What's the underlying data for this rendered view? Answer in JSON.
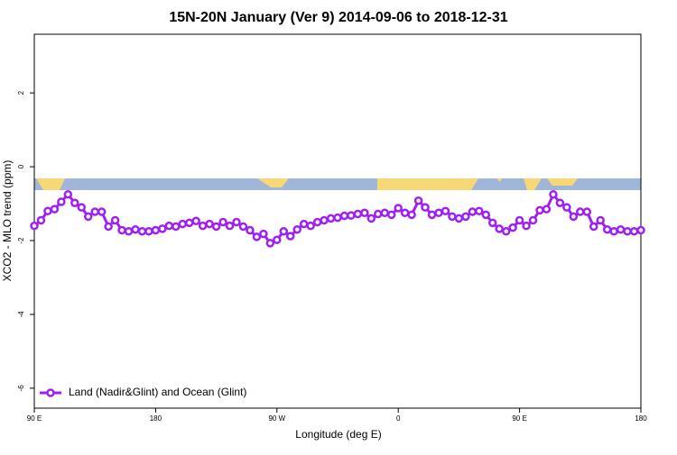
{
  "chart_data": {
    "type": "line",
    "title": "15N-20N January (Ver 9)   2014-09-06 to 2018-12-31",
    "x_label": "Longitude (deg E)",
    "y_label": "XCO2 - MLO trend (ppm)",
    "x": [
      90,
      95,
      100,
      105,
      110,
      115,
      120,
      125,
      130,
      135,
      140,
      145,
      150,
      155,
      160,
      165,
      170,
      175,
      180,
      185,
      190,
      195,
      200,
      205,
      210,
      215,
      220,
      225,
      230,
      235,
      240,
      245,
      250,
      255,
      260,
      265,
      270,
      275,
      280,
      285,
      290,
      295,
      300,
      305,
      310,
      315,
      320,
      325,
      330,
      335,
      340,
      345,
      350,
      355,
      360,
      365,
      370,
      375,
      380,
      385,
      390,
      395,
      400,
      405,
      410,
      415,
      420,
      425,
      430,
      435,
      440,
      445,
      450,
      455,
      460,
      465,
      470,
      475,
      480,
      485,
      490,
      495,
      500,
      505,
      510,
      515,
      520,
      525,
      530,
      535,
      540
    ],
    "series": [
      {
        "name": "Land (Nadir&Glint) and Ocean (Glint)",
        "color": "#a020f0",
        "values": [
          -1.6,
          -1.45,
          -1.2,
          -1.15,
          -0.95,
          -0.75,
          -0.98,
          -1.1,
          -1.35,
          -1.22,
          -1.22,
          -1.62,
          -1.45,
          -1.72,
          -1.75,
          -1.7,
          -1.75,
          -1.75,
          -1.72,
          -1.68,
          -1.6,
          -1.62,
          -1.55,
          -1.52,
          -1.47,
          -1.6,
          -1.55,
          -1.62,
          -1.5,
          -1.6,
          -1.5,
          -1.62,
          -1.72,
          -1.9,
          -1.82,
          -2.07,
          -1.98,
          -1.75,
          -1.88,
          -1.7,
          -1.55,
          -1.6,
          -1.5,
          -1.45,
          -1.4,
          -1.38,
          -1.33,
          -1.32,
          -1.28,
          -1.25,
          -1.4,
          -1.28,
          -1.25,
          -1.3,
          -1.12,
          -1.25,
          -1.3,
          -0.92,
          -1.1,
          -1.3,
          -1.25,
          -1.2,
          -1.35,
          -1.4,
          -1.35,
          -1.22,
          -1.2,
          -1.3,
          -1.52,
          -1.68,
          -1.75,
          -1.65,
          -1.45,
          -1.6,
          -1.45,
          -1.18,
          -1.15,
          -0.75,
          -0.98,
          -1.1,
          -1.35,
          -1.22,
          -1.22,
          -1.62,
          -1.45,
          -1.7,
          -1.75,
          -1.7,
          -1.75,
          -1.75,
          -1.72
        ]
      }
    ],
    "xlim": [
      90,
      540
    ],
    "xticks": [
      {
        "value": 90,
        "label": "90 E"
      },
      180,
      {
        "value": 270,
        "label": "90 W"
      },
      {
        "value": 360,
        "label": "0"
      },
      {
        "value": 450,
        "label": "90 E"
      },
      {
        "value": 540,
        "label": "180"
      }
    ],
    "ylim": [
      -6.54,
      3.59
    ],
    "yticks": [
      -6,
      -4,
      -2,
      0,
      2
    ],
    "legend": "bottomleft"
  }
}
